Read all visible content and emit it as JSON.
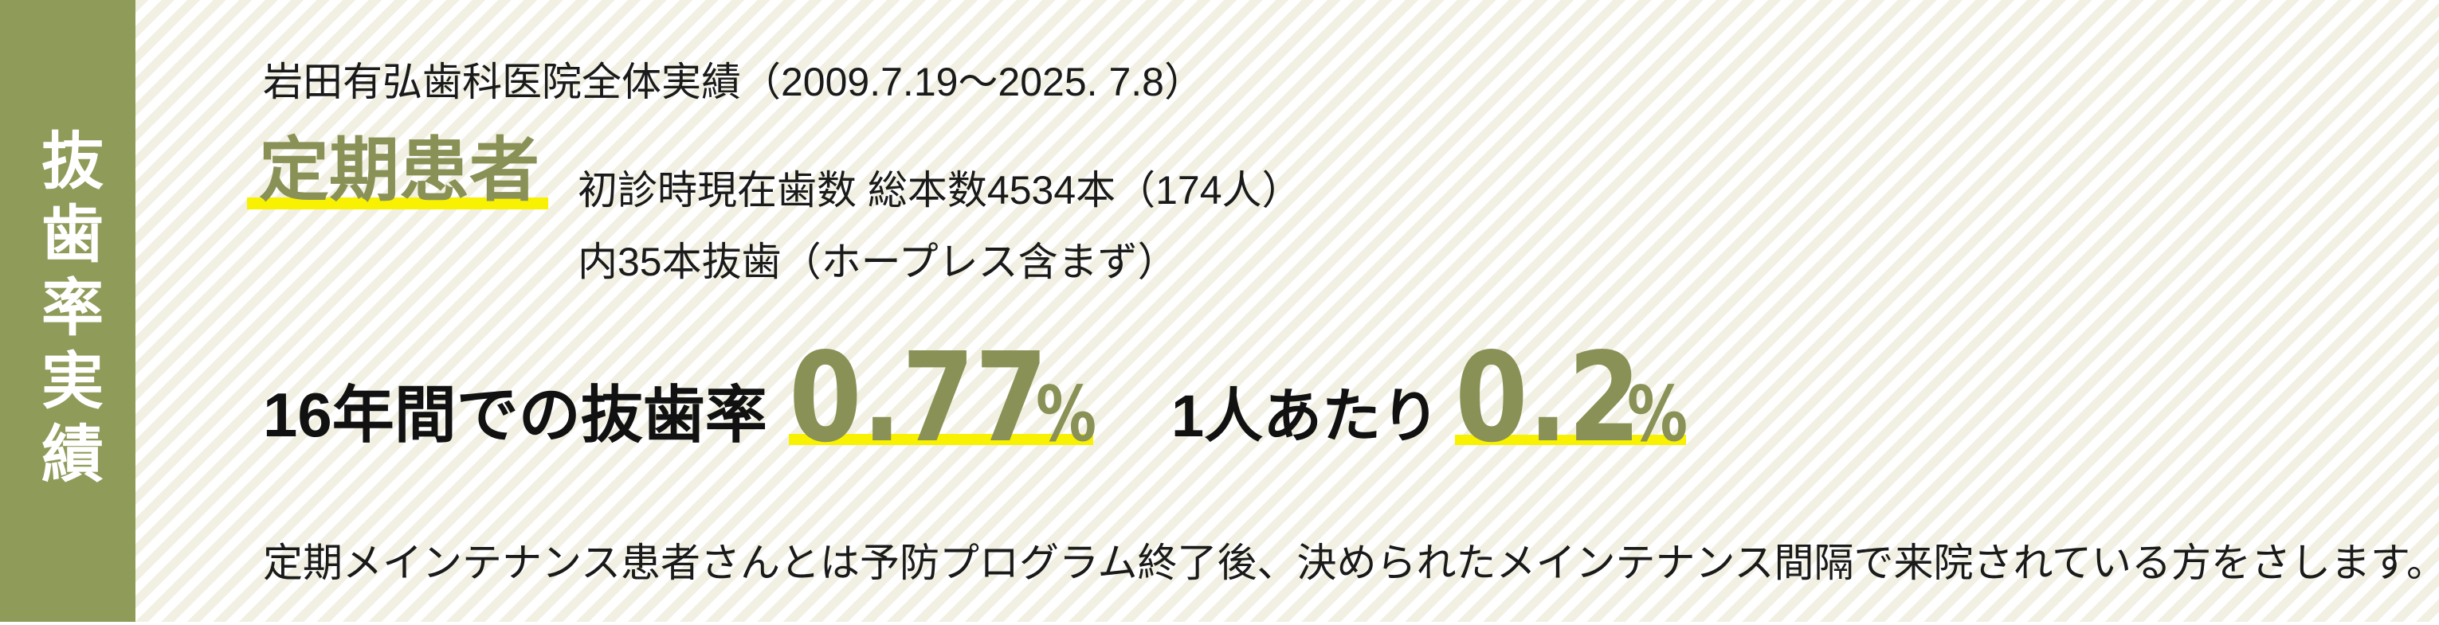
{
  "colors": {
    "sidebar_green": "#8e9b59",
    "accent_green": "#8a9156",
    "highlight_yellow": "#f8f102",
    "stripe_beige": "#f1f0e3",
    "text_black": "#1a1a1a"
  },
  "sidebar": {
    "vertical_title": "抜歯率実績"
  },
  "header": {
    "scope_line": "岩田有弘歯科医院全体実績（2009.7.19〜2025. 7.8）"
  },
  "patient_group": {
    "label": "定期患者",
    "detail_line1": "初診時現在歯数 総本数4534本（174人）",
    "detail_line2": "内35本抜歯（ホープレス含まず）"
  },
  "stats": {
    "extraction_rate": {
      "label": "16年間での抜歯率",
      "value": "0.77",
      "unit": "%"
    },
    "per_person": {
      "label": "1人あたり",
      "value": "0.2",
      "unit": "%"
    }
  },
  "footnote": "定期メインテナンス患者さんとは予防プログラム終了後、決められたメインテナンス間隔で来院されている方をさします。"
}
